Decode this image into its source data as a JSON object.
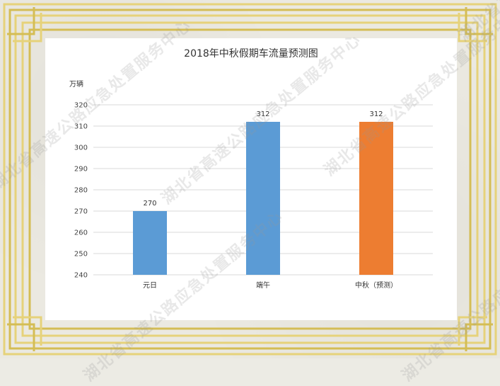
{
  "colors": {
    "frame": "#e6d27a",
    "frame_dark": "#d4bd55",
    "bar_default": "#5b9bd5",
    "bar_highlight": "#ed7d31",
    "grid": "#d9d9d9",
    "card": "#ffffff"
  },
  "watermark_text": "湖北省高速公路应急处置服务中心",
  "chart_data": {
    "type": "bar",
    "title": "2018年中秋假期车流量预测图",
    "ylabel": "万辆",
    "xlabel": "",
    "categories": [
      "元日",
      "端午",
      "中秋（预测）"
    ],
    "values": [
      270,
      312,
      312
    ],
    "data_labels": [
      "270",
      "312",
      "312"
    ],
    "highlight_index": 2,
    "ylim": [
      240,
      320
    ],
    "ytick_step": 10,
    "yticks": [
      "240",
      "250",
      "260",
      "270",
      "280",
      "290",
      "300",
      "310",
      "320"
    ],
    "grid": true,
    "legend": "none"
  }
}
